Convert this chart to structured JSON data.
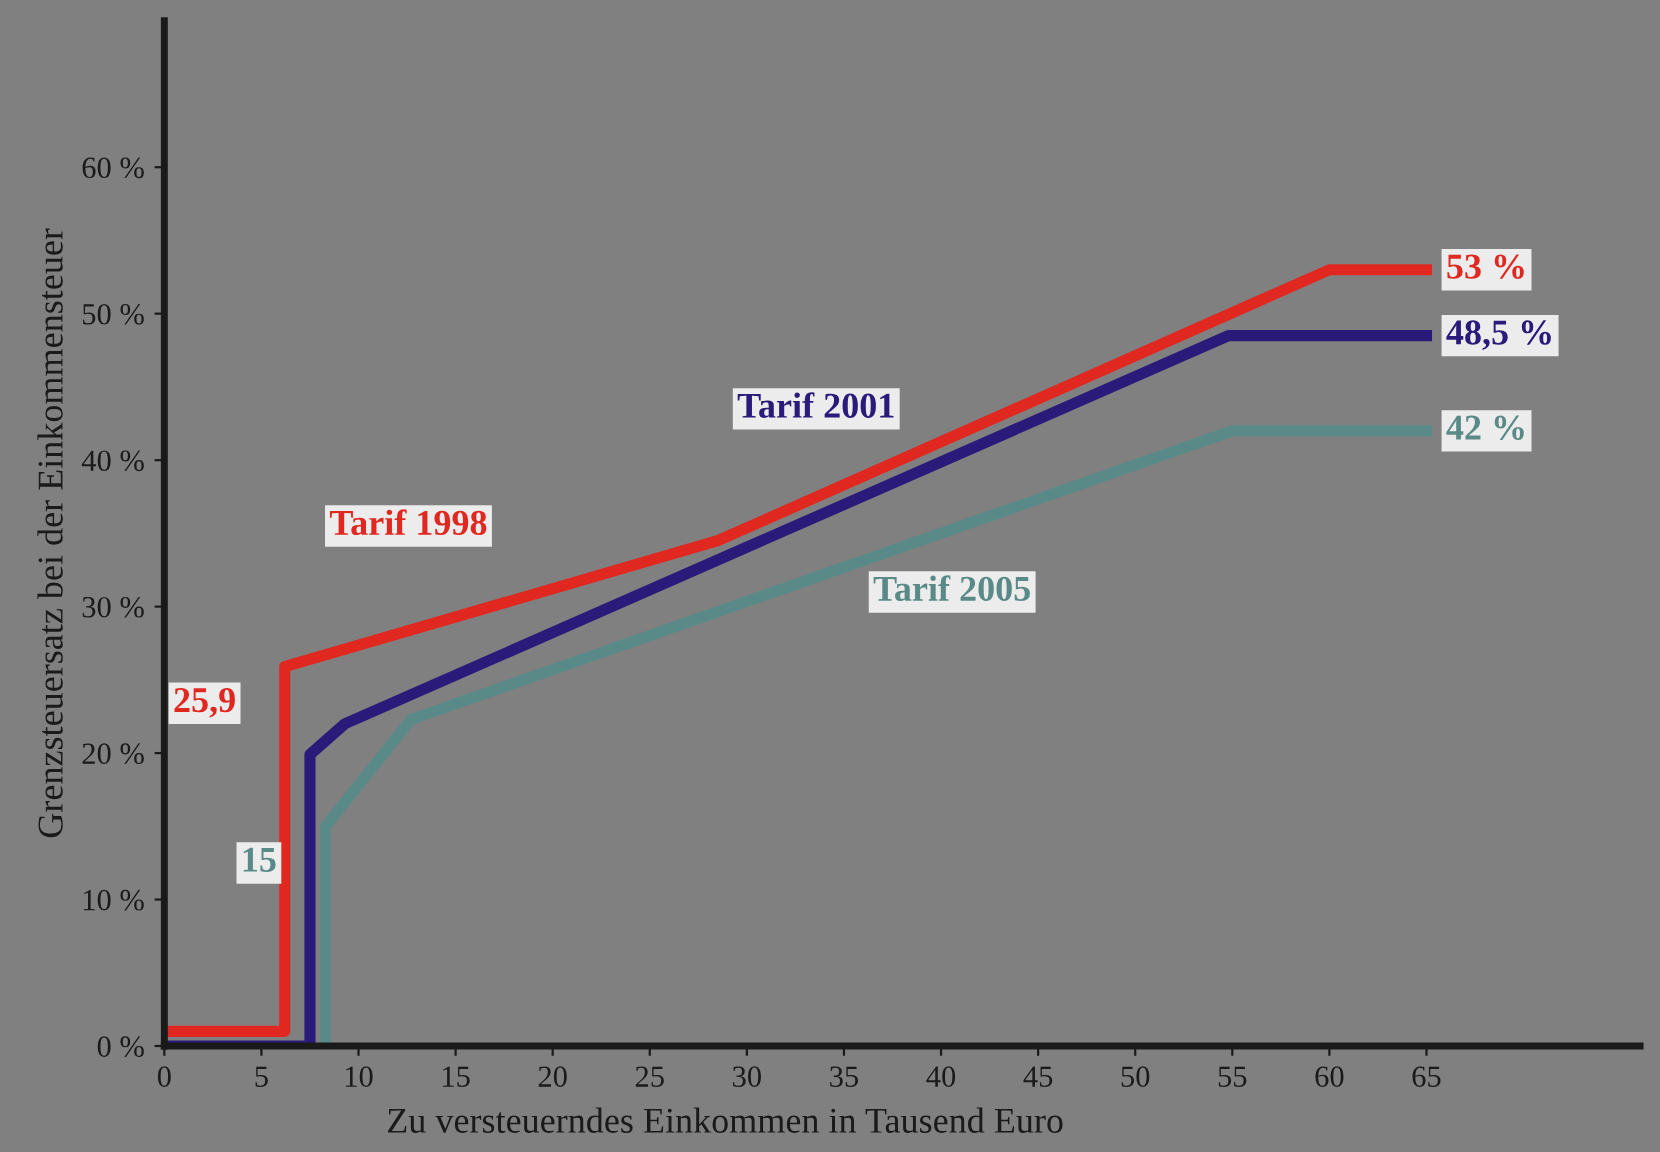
{
  "chart_data": {
    "type": "line",
    "xlabel": "Zu versteuerndes Einkommen in Tausend Euro",
    "ylabel": "Grenzsteuersatz bei der Einkommensteuer",
    "xlim": [
      0,
      76
    ],
    "ylim": [
      0,
      70
    ],
    "xticks": [
      0,
      5,
      10,
      15,
      20,
      25,
      30,
      35,
      40,
      45,
      50,
      55,
      60,
      65
    ],
    "yticks": [
      {
        "value": 0,
        "label": "0 %"
      },
      {
        "value": 10,
        "label": "10 %"
      },
      {
        "value": 20,
        "label": "20 %"
      },
      {
        "value": 30,
        "label": "30 %"
      },
      {
        "value": 40,
        "label": "40 %"
      },
      {
        "value": 50,
        "label": "50 %"
      },
      {
        "value": 60,
        "label": "60 %"
      }
    ],
    "grid": false,
    "legend": false,
    "marker": "none",
    "line_style": "solid",
    "series": [
      {
        "name": "Tarif 1998",
        "color": "#e02820",
        "x": [
          0,
          6.2,
          6.2,
          28.5,
          60,
          65
        ],
        "values": [
          1,
          1,
          25.9,
          34.5,
          53,
          53
        ]
      },
      {
        "name": "Tarif 2001",
        "color": "#2a1a7a",
        "x": [
          0,
          7.5,
          7.5,
          9.3,
          54.8,
          65
        ],
        "values": [
          0,
          0,
          19.9,
          22,
          48.5,
          48.5
        ]
      },
      {
        "name": "Tarif 2005",
        "color": "#5a8a88",
        "x": [
          8.3,
          8.3,
          12.7,
          55,
          65
        ],
        "values": [
          0,
          15,
          22.3,
          42,
          42
        ]
      }
    ],
    "annotations": [
      {
        "text": "25,9",
        "x": 6.2,
        "y": 25.9
      },
      {
        "text": "15",
        "x": 8.3,
        "y": 15
      },
      {
        "text": "53 %",
        "x": 65,
        "y": 53
      },
      {
        "text": "48,5 %",
        "x": 65,
        "y": 48.5
      },
      {
        "text": "42 %",
        "x": 65,
        "y": 42
      }
    ]
  }
}
